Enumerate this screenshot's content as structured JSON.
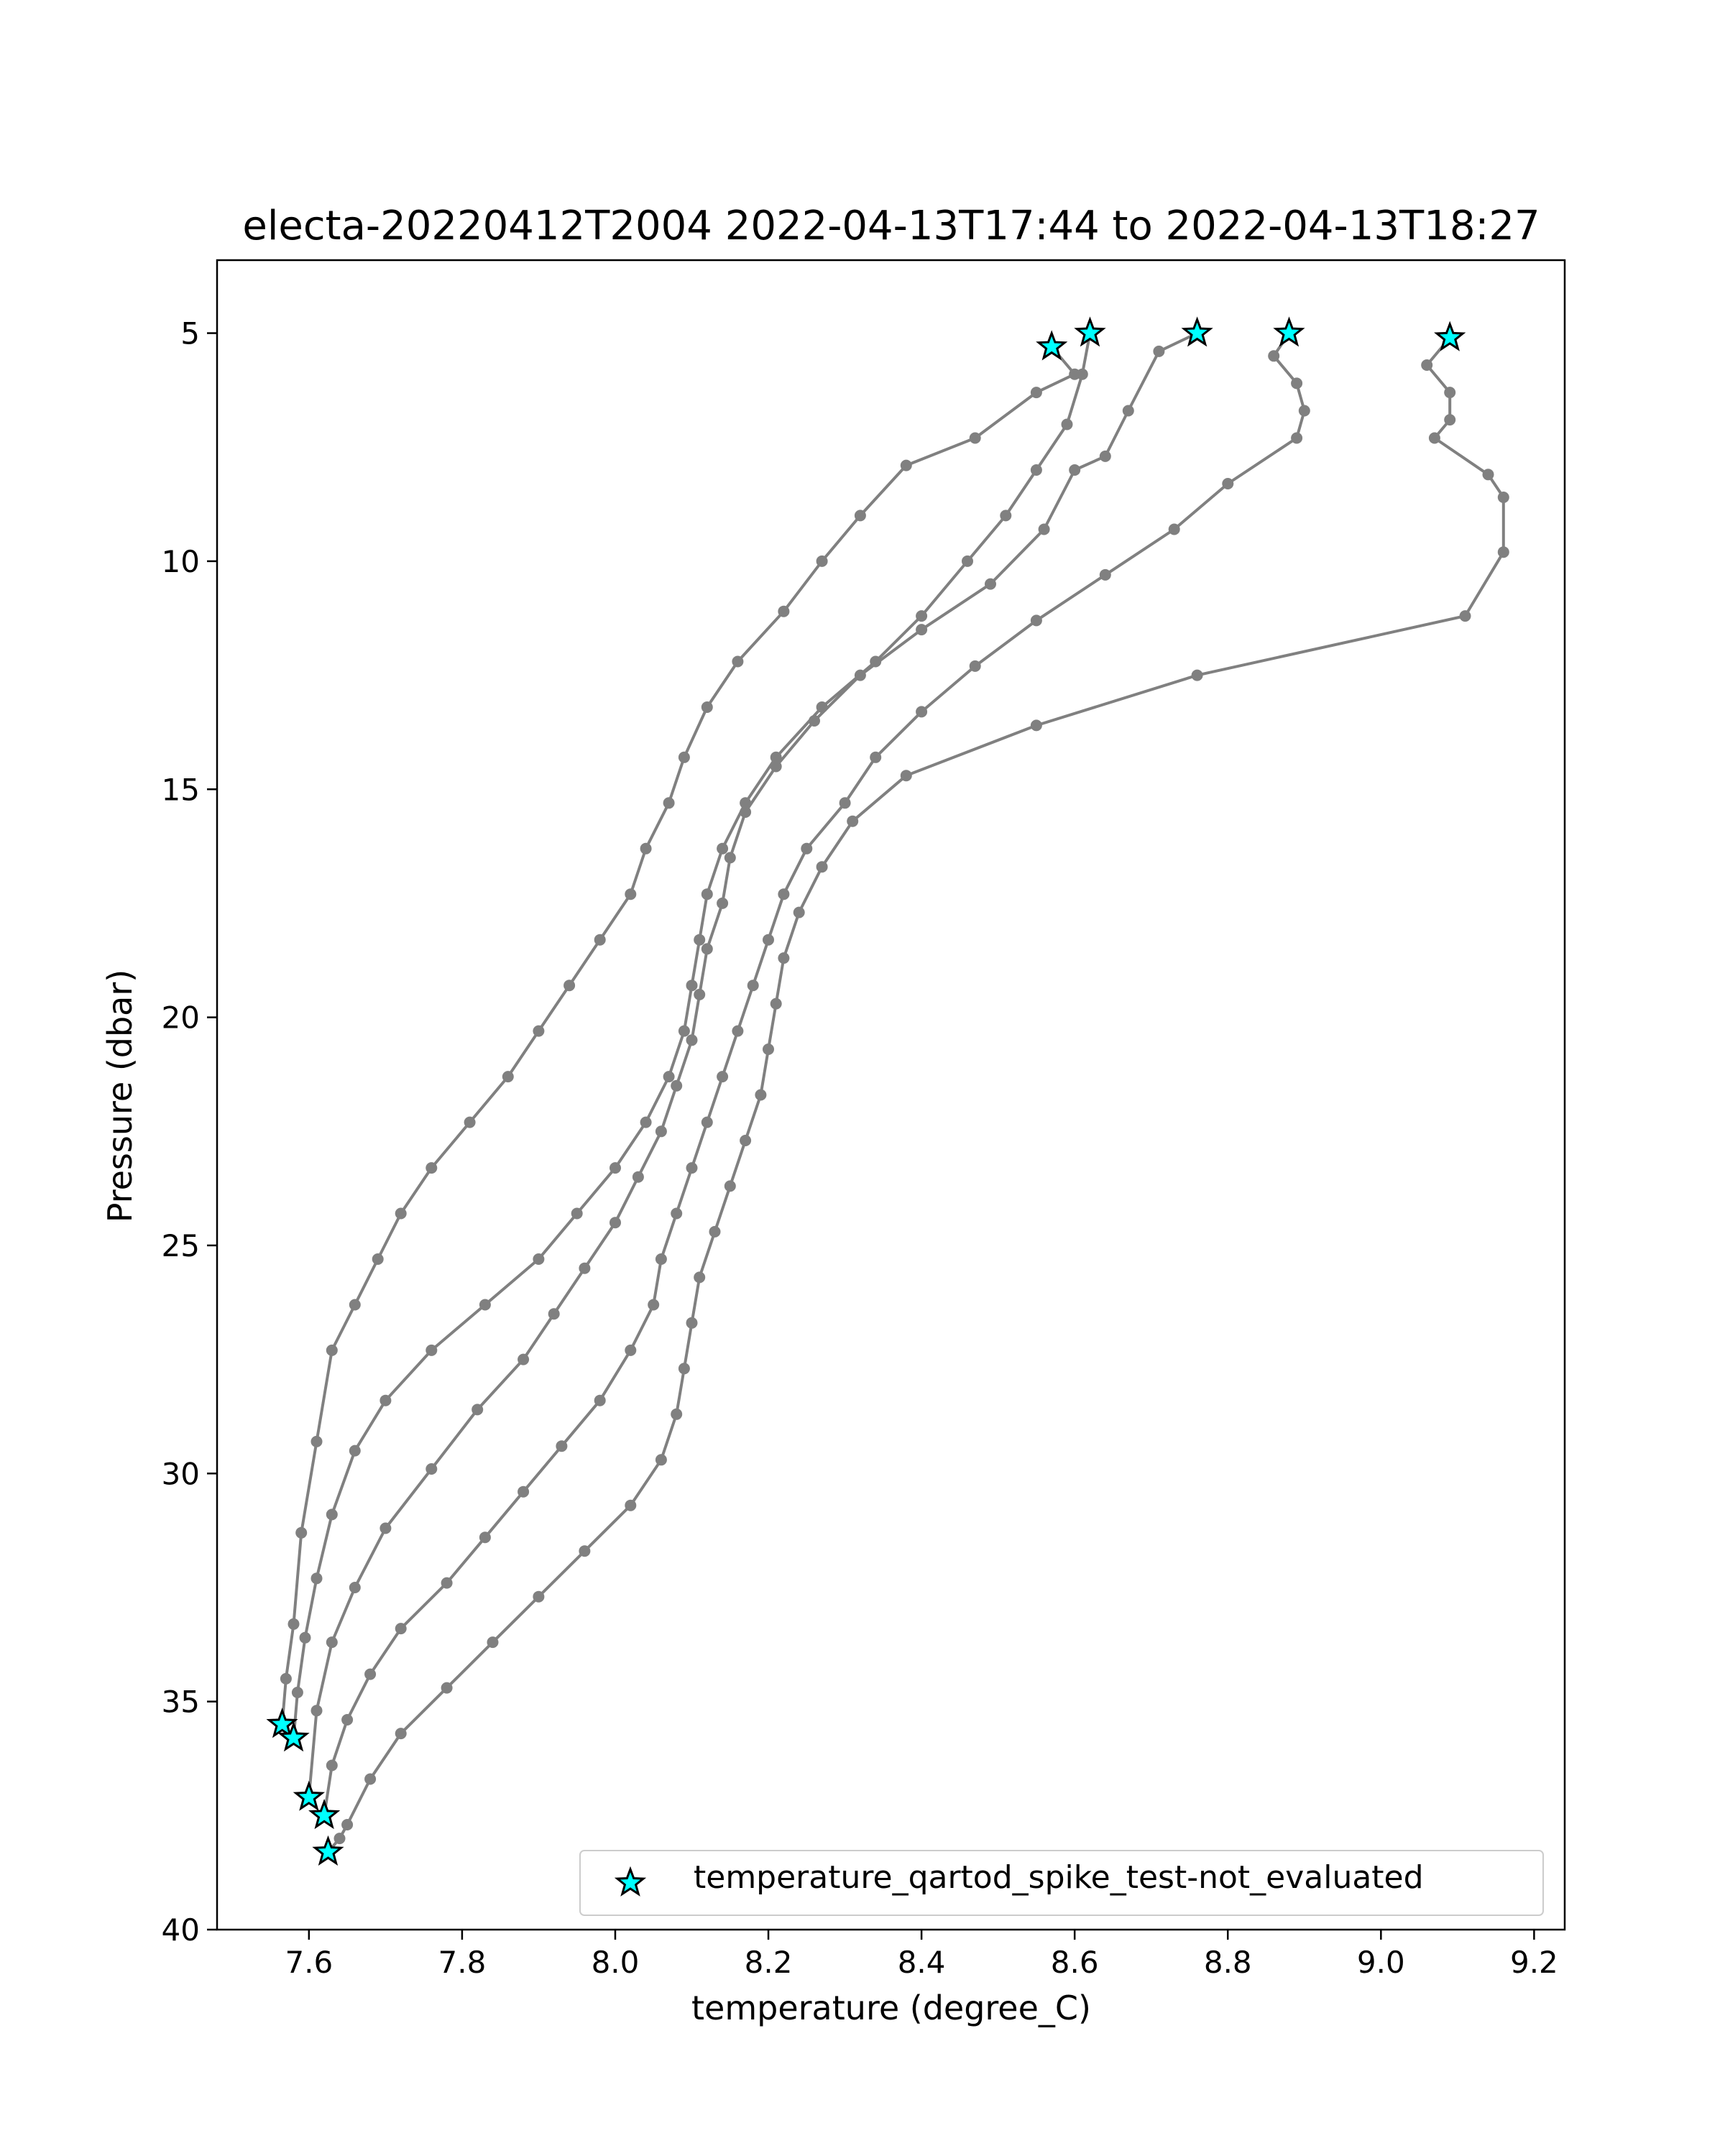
{
  "chart_data": {
    "type": "line",
    "title": "electa-20220412T2004 2022-04-13T17:44 to 2022-04-13T18:27",
    "xlabel": "temperature (degree_C)",
    "ylabel": "Pressure (dbar)",
    "xlim": [
      7.48,
      9.24
    ],
    "ylim": [
      40.0,
      3.4
    ],
    "y_inverted": true,
    "grid": false,
    "xticks": [
      "7.6",
      "7.8",
      "8.0",
      "8.2",
      "8.4",
      "8.6",
      "8.8",
      "9.0",
      "9.2"
    ],
    "yticks": [
      "5",
      "10",
      "15",
      "20",
      "25",
      "30",
      "35",
      "40"
    ],
    "line_color": "#808080",
    "marker_color": "#808080",
    "series": [
      {
        "x": [
          8.57,
          8.6,
          8.55,
          8.47,
          8.38,
          8.32,
          8.27,
          8.22,
          8.16,
          8.12,
          8.09,
          8.07,
          8.04,
          8.02,
          7.98,
          7.94,
          7.9,
          7.86,
          7.81,
          7.76,
          7.72,
          7.69,
          7.66,
          7.63,
          7.61,
          7.59,
          7.58,
          7.57,
          7.565
        ],
        "y": [
          5.3,
          5.9,
          6.3,
          7.3,
          7.9,
          9.0,
          10.0,
          11.1,
          12.2,
          13.2,
          14.3,
          15.3,
          16.3,
          17.3,
          18.3,
          19.3,
          20.3,
          21.3,
          22.3,
          23.3,
          24.3,
          25.3,
          26.3,
          27.3,
          29.3,
          31.3,
          33.3,
          34.5,
          35.5
        ]
      },
      {
        "x": [
          8.62,
          8.61,
          8.59,
          8.55,
          8.51,
          8.46,
          8.4,
          8.34,
          8.27,
          8.21,
          8.17,
          8.14,
          8.12,
          8.11,
          8.1,
          8.09,
          8.07,
          8.04,
          8.0,
          7.95,
          7.9,
          7.83,
          7.76,
          7.7,
          7.66,
          7.63,
          7.61,
          7.595,
          7.585,
          7.58
        ],
        "y": [
          5.0,
          5.9,
          7.0,
          8.0,
          9.0,
          10.0,
          11.2,
          12.2,
          13.2,
          14.3,
          15.3,
          16.3,
          17.3,
          18.3,
          19.3,
          20.3,
          21.3,
          22.3,
          23.3,
          24.3,
          25.3,
          26.3,
          27.3,
          28.4,
          29.5,
          30.9,
          32.3,
          33.6,
          34.8,
          35.8
        ]
      },
      {
        "x": [
          8.76,
          8.71,
          8.67,
          8.64,
          8.6,
          8.56,
          8.49,
          8.4,
          8.32,
          8.26,
          8.21,
          8.17,
          8.15,
          8.14,
          8.12,
          8.11,
          8.1,
          8.08,
          8.06,
          8.03,
          8.0,
          7.96,
          7.92,
          7.88,
          7.82,
          7.76,
          7.7,
          7.66,
          7.63,
          7.61,
          7.6
        ],
        "y": [
          5.0,
          5.4,
          6.7,
          7.7,
          8.0,
          9.3,
          10.5,
          11.5,
          12.5,
          13.5,
          14.5,
          15.5,
          16.5,
          17.5,
          18.5,
          19.5,
          20.5,
          21.5,
          22.5,
          23.5,
          24.5,
          25.5,
          26.5,
          27.5,
          28.6,
          29.9,
          31.2,
          32.5,
          33.7,
          35.2,
          37.1
        ]
      },
      {
        "x": [
          8.88,
          8.86,
          8.89,
          8.9,
          8.89,
          8.8,
          8.73,
          8.64,
          8.55,
          8.47,
          8.4,
          8.34,
          8.3,
          8.25,
          8.22,
          8.2,
          8.18,
          8.16,
          8.14,
          8.12,
          8.1,
          8.08,
          8.06,
          8.05,
          8.02,
          7.98,
          7.93,
          7.88,
          7.83,
          7.78,
          7.72,
          7.68,
          7.65,
          7.63,
          7.62
        ],
        "y": [
          5.0,
          5.5,
          6.1,
          6.7,
          7.3,
          8.3,
          9.3,
          10.3,
          11.3,
          12.3,
          13.3,
          14.3,
          15.3,
          16.3,
          17.3,
          18.3,
          19.3,
          20.3,
          21.3,
          22.3,
          23.3,
          24.3,
          25.3,
          26.3,
          27.3,
          28.4,
          29.4,
          30.4,
          31.4,
          32.4,
          33.4,
          34.4,
          35.4,
          36.4,
          37.5
        ]
      },
      {
        "x": [
          9.09,
          9.06,
          9.09,
          9.09,
          9.07,
          9.14,
          9.16,
          9.16,
          9.11,
          8.76,
          8.55,
          8.38,
          8.31,
          8.27,
          8.24,
          8.22,
          8.21,
          8.2,
          8.19,
          8.17,
          8.15,
          8.13,
          8.11,
          8.1,
          8.09,
          8.08,
          8.06,
          8.02,
          7.96,
          7.9,
          7.84,
          7.78,
          7.72,
          7.68,
          7.65,
          7.64,
          7.625
        ],
        "y": [
          5.1,
          5.7,
          6.3,
          6.9,
          7.3,
          8.1,
          8.6,
          9.8,
          11.2,
          12.5,
          13.6,
          14.7,
          15.7,
          16.7,
          17.7,
          18.7,
          19.7,
          20.7,
          21.7,
          22.7,
          23.7,
          24.7,
          25.7,
          26.7,
          27.7,
          28.7,
          29.7,
          30.7,
          31.7,
          32.7,
          33.7,
          34.7,
          35.7,
          36.7,
          37.7,
          38.0,
          38.3
        ]
      }
    ],
    "flagged_points": {
      "name": "temperature_qartod_spike_test-not_evaluated",
      "marker": "star",
      "color": "#00ffff",
      "x": [
        8.57,
        8.62,
        8.76,
        8.88,
        9.09,
        7.565,
        7.58,
        7.6,
        7.62,
        7.625
      ],
      "y": [
        5.3,
        5.0,
        5.0,
        5.0,
        5.1,
        35.5,
        35.8,
        37.1,
        37.5,
        38.3
      ]
    },
    "legend": {
      "position": "lower right",
      "entries": [
        "temperature_qartod_spike_test-not_evaluated"
      ]
    }
  }
}
